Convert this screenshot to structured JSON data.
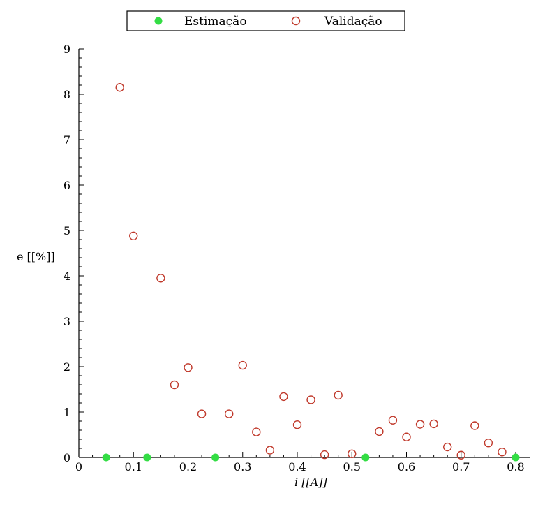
{
  "chart_data": {
    "type": "scatter",
    "title": "",
    "xlabel": "i [[A]]",
    "ylabel": "e [[%]]",
    "xlim": [
      0,
      0.8
    ],
    "ylim": [
      0,
      9
    ],
    "xticks": [
      0,
      0.1,
      0.2,
      0.3,
      0.4,
      0.5,
      0.6,
      0.7,
      0.8
    ],
    "xtick_labels": [
      "0",
      "0.1",
      "0.2",
      "0.3",
      "0.4",
      "0.5",
      "0.6",
      "0.7",
      "0.8"
    ],
    "yticks": [
      0,
      1,
      2,
      3,
      4,
      5,
      6,
      7,
      8,
      9
    ],
    "ytick_labels": [
      "0",
      "1",
      "2",
      "3",
      "4",
      "5",
      "6",
      "7",
      "8",
      "9"
    ],
    "grid": false,
    "legend_position": "top-center",
    "series": [
      {
        "name": "Estimação",
        "marker": "filled-circle",
        "color": "#33dd44",
        "points": [
          {
            "x": 0.05,
            "y": 0.0
          },
          {
            "x": 0.125,
            "y": 0.0
          },
          {
            "x": 0.25,
            "y": 0.0
          },
          {
            "x": 0.525,
            "y": 0.0
          },
          {
            "x": 0.8,
            "y": 0.0
          }
        ]
      },
      {
        "name": "Validação",
        "marker": "open-circle",
        "color": "#c0392b",
        "points": [
          {
            "x": 0.075,
            "y": 8.15
          },
          {
            "x": 0.1,
            "y": 4.88
          },
          {
            "x": 0.15,
            "y": 3.95
          },
          {
            "x": 0.175,
            "y": 1.6
          },
          {
            "x": 0.2,
            "y": 1.98
          },
          {
            "x": 0.225,
            "y": 0.96
          },
          {
            "x": 0.275,
            "y": 0.96
          },
          {
            "x": 0.3,
            "y": 2.03
          },
          {
            "x": 0.325,
            "y": 0.56
          },
          {
            "x": 0.35,
            "y": 0.16
          },
          {
            "x": 0.375,
            "y": 1.34
          },
          {
            "x": 0.4,
            "y": 0.72
          },
          {
            "x": 0.425,
            "y": 1.27
          },
          {
            "x": 0.45,
            "y": 0.06
          },
          {
            "x": 0.475,
            "y": 1.37
          },
          {
            "x": 0.5,
            "y": 0.08
          },
          {
            "x": 0.55,
            "y": 0.57
          },
          {
            "x": 0.575,
            "y": 0.82
          },
          {
            "x": 0.6,
            "y": 0.45
          },
          {
            "x": 0.625,
            "y": 0.73
          },
          {
            "x": 0.65,
            "y": 0.74
          },
          {
            "x": 0.675,
            "y": 0.23
          },
          {
            "x": 0.7,
            "y": 0.05
          },
          {
            "x": 0.725,
            "y": 0.7
          },
          {
            "x": 0.75,
            "y": 0.32
          },
          {
            "x": 0.775,
            "y": 0.12
          }
        ]
      }
    ]
  }
}
